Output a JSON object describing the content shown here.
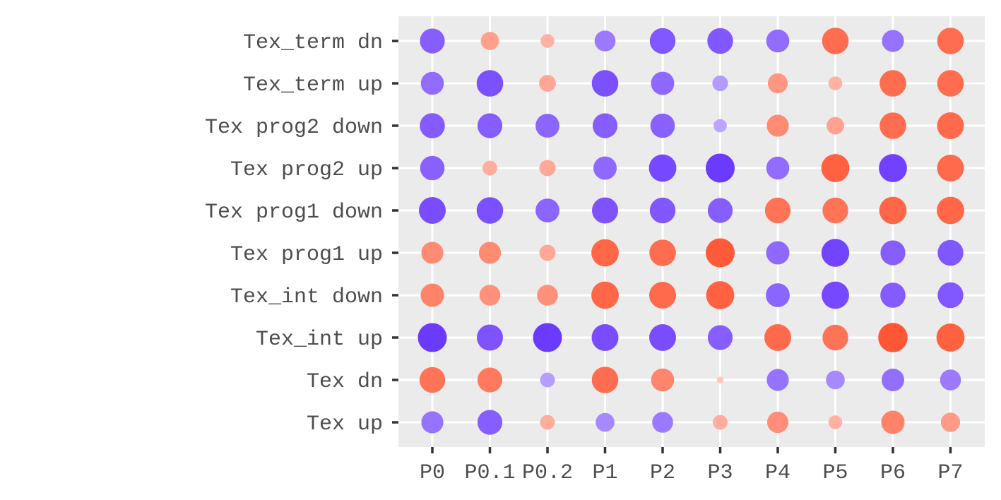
{
  "chart_data": {
    "type": "scatter",
    "title": "",
    "xlabel": "",
    "ylabel": "",
    "x_categories": [
      "P0",
      "P0.1",
      "P0.2",
      "P1",
      "P2",
      "P3",
      "P4",
      "P5",
      "P6",
      "P7"
    ],
    "y_categories": [
      "Tex up",
      "Tex dn",
      "Tex_int up",
      "Tex_int down",
      "Tex prog1 up",
      "Tex prog1 down",
      "Tex prog2 up",
      "Tex prog2 down",
      "Tex_term up",
      "Tex_term dn"
    ],
    "color_scale": {
      "low": "#6633ff",
      "high": "#ff5533"
    },
    "grid": true,
    "legend": "none",
    "note_on_values": "each point has signed value v in [-1,1]; negative = purple, positive = orange; dot size proportional to |v|",
    "points": [
      {
        "y": "Tex_term dn",
        "values": [
          -0.7,
          0.38,
          0.22,
          -0.5,
          -0.75,
          -0.75,
          -0.6,
          0.8,
          -0.55,
          0.8
        ]
      },
      {
        "y": "Tex_term up",
        "values": [
          -0.6,
          -0.8,
          0.32,
          -0.8,
          -0.62,
          -0.28,
          0.45,
          0.22,
          0.8,
          0.8
        ]
      },
      {
        "y": "Tex prog2 down",
        "values": [
          -0.72,
          -0.7,
          -0.65,
          -0.7,
          -0.68,
          -0.2,
          0.55,
          0.35,
          0.8,
          0.82
        ]
      },
      {
        "y": "Tex prog2 up",
        "values": [
          -0.68,
          0.25,
          0.3,
          -0.62,
          -0.85,
          -0.95,
          -0.6,
          0.9,
          -0.9,
          0.82
        ]
      },
      {
        "y": "Tex prog1 down",
        "values": [
          -0.82,
          -0.8,
          -0.65,
          -0.78,
          -0.75,
          -0.7,
          0.75,
          0.75,
          0.85,
          0.85
        ]
      },
      {
        "y": "Tex prog1 up",
        "values": [
          0.55,
          0.55,
          0.3,
          0.85,
          0.8,
          0.95,
          -0.62,
          -0.88,
          -0.7,
          -0.75
        ]
      },
      {
        "y": "Tex_int down",
        "values": [
          0.62,
          0.5,
          0.5,
          0.85,
          0.82,
          0.9,
          -0.65,
          -0.85,
          -0.72,
          -0.75
        ]
      },
      {
        "y": "Tex_int up",
        "values": [
          -0.95,
          -0.78,
          -0.95,
          -0.82,
          -0.82,
          -0.7,
          0.82,
          0.75,
          0.98,
          0.9
        ]
      },
      {
        "y": "Tex dn",
        "values": [
          0.75,
          0.7,
          -0.25,
          0.8,
          0.6,
          0.05,
          -0.55,
          -0.4,
          -0.58,
          -0.5
        ]
      },
      {
        "y": "Tex up",
        "values": [
          -0.55,
          -0.7,
          0.25,
          -0.4,
          -0.5,
          0.25,
          0.52,
          0.22,
          0.62,
          0.42
        ]
      }
    ]
  }
}
